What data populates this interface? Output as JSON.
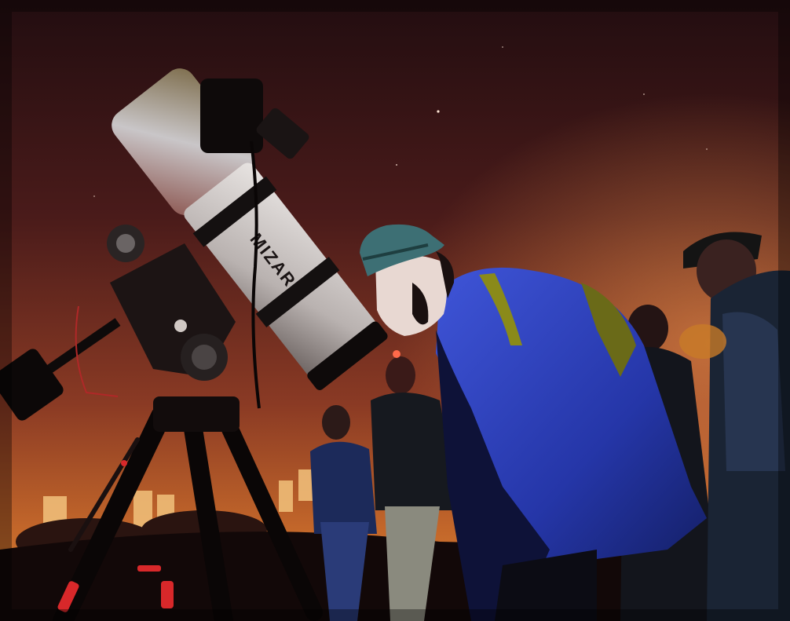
{
  "photo": {
    "telescope_brand": "MIZAR"
  },
  "colors": {
    "sky_top": "#2a1012",
    "sky_mid": "#6a2a22",
    "sky_horizon": "#d0702c",
    "jacket_blue": "#2a3fb8",
    "hat_teal": "#3d6f74",
    "tube_white": "#c9c4c2",
    "red_light": "#d8282a"
  }
}
